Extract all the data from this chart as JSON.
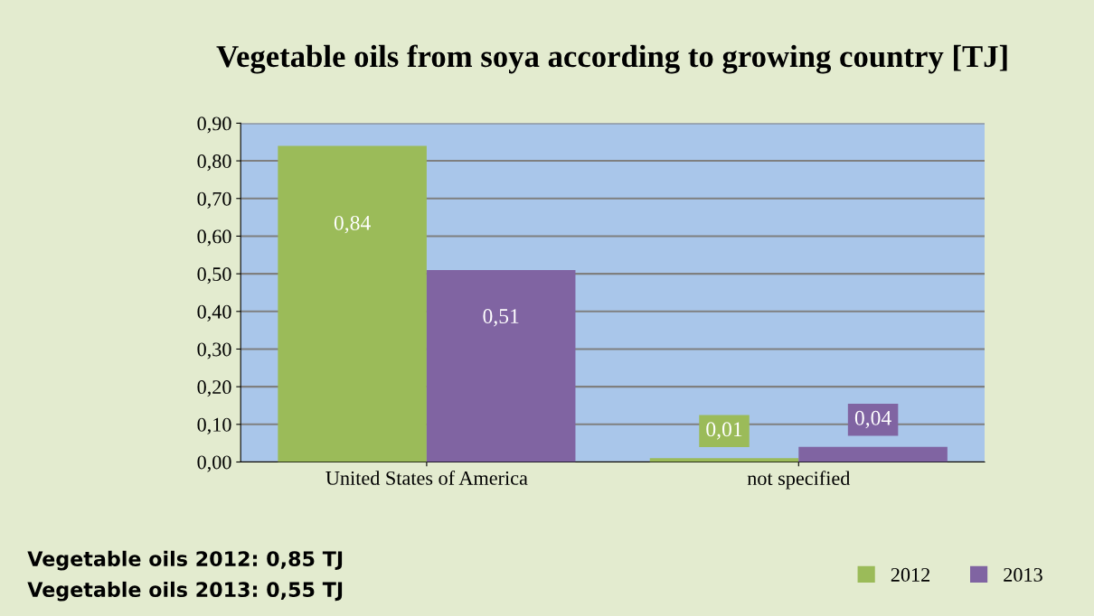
{
  "chart_data": {
    "type": "bar",
    "title": "Vegetable oils from soya according to growing country [TJ]",
    "categories": [
      "United States of America",
      "not specified"
    ],
    "series": [
      {
        "name": "2012",
        "color": "#9bbb59",
        "values": [
          0.84,
          0.01
        ],
        "value_labels": [
          "0,84",
          "0,01"
        ]
      },
      {
        "name": "2013",
        "color": "#8064a2",
        "values": [
          0.51,
          0.04
        ],
        "value_labels": [
          "0,51",
          "0,04"
        ]
      }
    ],
    "ylim": [
      0,
      0.9
    ],
    "yticks": [
      {
        "value": 0,
        "label": "0,00"
      },
      {
        "value": 0.1,
        "label": "0,10"
      },
      {
        "value": 0.2,
        "label": "0,20"
      },
      {
        "value": 0.3,
        "label": "0,30"
      },
      {
        "value": 0.4,
        "label": "0,40"
      },
      {
        "value": 0.5,
        "label": "0,50"
      },
      {
        "value": 0.6,
        "label": "0,60"
      },
      {
        "value": 0.7,
        "label": "0,70"
      },
      {
        "value": 0.8,
        "label": "0,80"
      },
      {
        "value": 0.9,
        "label": "0,90"
      }
    ],
    "grid": "y",
    "legend": "bottom right",
    "annotations": [
      "Vegetable oils 2012: 0,85 TJ",
      "Vegetable oils 2013: 0,55 TJ"
    ]
  }
}
